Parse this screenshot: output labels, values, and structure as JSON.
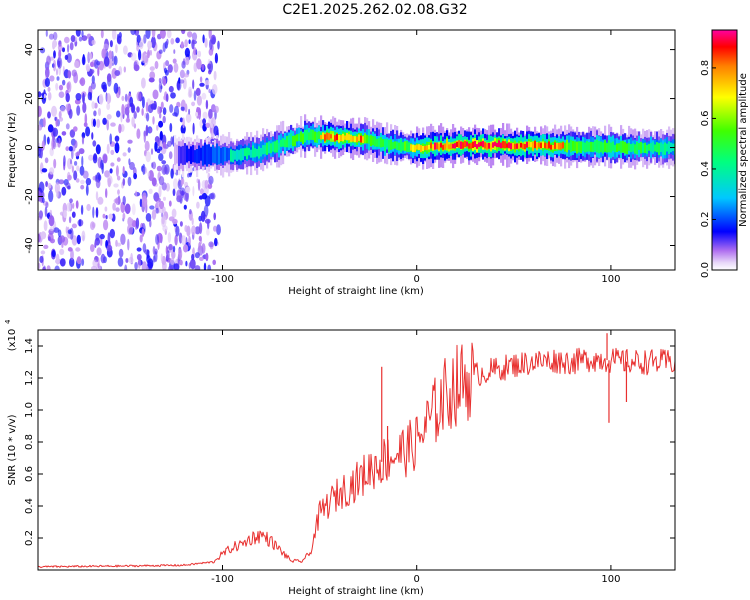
{
  "title": "C2E1.2025.262.02.08.G32",
  "chart_data": [
    {
      "type": "heatmap",
      "xlabel": "Height of straight line (km)",
      "ylabel": "Frequency (Hz)",
      "xlim": [
        -195,
        133
      ],
      "ylim": [
        -50,
        48
      ],
      "xticks": [
        -100,
        0,
        100
      ],
      "yticks": [
        -40,
        -20,
        0,
        20,
        40
      ],
      "colorbar": {
        "label": "Normalized spectral amplitude",
        "range": [
          0,
          0.95
        ],
        "ticks": [
          0.0,
          0.2,
          0.4,
          0.6,
          0.8
        ]
      },
      "ridge": {
        "x": [
          -125,
          -110,
          -95,
          -80,
          -65,
          -55,
          -45,
          -35,
          -25,
          -15,
          0,
          20,
          50,
          80,
          110,
          133
        ],
        "freq": [
          -3,
          -3,
          -3,
          -1.5,
          3,
          5,
          4,
          4,
          3,
          1,
          0,
          1,
          1,
          0.5,
          0,
          -0.5
        ],
        "peak_amplitude": [
          0.3,
          0.5,
          0.55,
          0.6,
          0.7,
          0.75,
          0.8,
          0.85,
          0.75,
          0.7,
          0.8,
          0.95,
          0.9,
          0.75,
          0.7,
          0.6
        ]
      },
      "noise_region_x": [
        -195,
        -110
      ],
      "noise_amplitude": 0.1
    },
    {
      "type": "line",
      "xlabel": "Height of straight line (km)",
      "ylabel": "SNR (10 * v/v)",
      "ylabel_scale": "(x10",
      "ylabel_exp": "4",
      "xlim": [
        -195,
        133
      ],
      "ylim": [
        0,
        1.5
      ],
      "xticks": [
        -100,
        0,
        100
      ],
      "yticks": [
        0.2,
        0.4,
        0.6,
        0.8,
        1.0,
        1.2,
        1.4
      ],
      "color": "#e8302f",
      "series": [
        {
          "name": "SNR",
          "x": [
            -195,
            -150,
            -120,
            -105,
            -100,
            -95,
            -90,
            -85,
            -80,
            -75,
            -70,
            -65,
            -60,
            -55,
            -50,
            -45,
            -40,
            -35,
            -30,
            -25,
            -20,
            -15,
            -10,
            -5,
            0,
            5,
            10,
            15,
            20,
            30,
            40,
            50,
            60,
            70,
            80,
            90,
            100,
            110,
            120,
            133
          ],
          "y": [
            0.02,
            0.025,
            0.03,
            0.05,
            0.1,
            0.14,
            0.16,
            0.2,
            0.22,
            0.18,
            0.12,
            0.06,
            0.05,
            0.1,
            0.35,
            0.42,
            0.48,
            0.52,
            0.56,
            0.62,
            0.66,
            0.7,
            0.73,
            0.75,
            0.8,
            0.9,
            1.0,
            1.1,
            1.15,
            1.22,
            1.25,
            1.28,
            1.3,
            1.31,
            1.3,
            1.32,
            1.31,
            1.3,
            1.3,
            1.3
          ]
        }
      ],
      "spikes": [
        {
          "x": -18,
          "y": 1.27
        },
        {
          "x": -15,
          "y": 0.9
        },
        {
          "x": 98,
          "y": 1.48
        },
        {
          "x": 99,
          "y": 0.92
        },
        {
          "x": 108,
          "y": 1.05
        }
      ]
    }
  ]
}
